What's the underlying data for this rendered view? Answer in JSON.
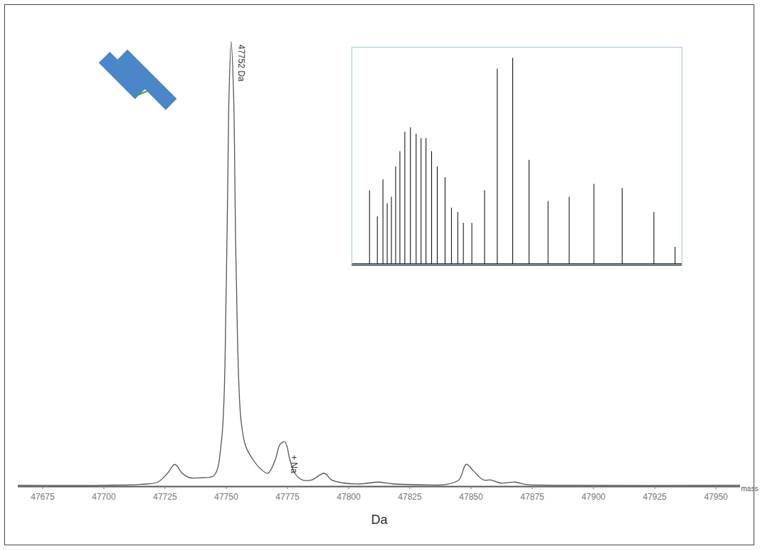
{
  "chart_data": [
    {
      "type": "line",
      "x_label": "Da",
      "x_axis_name": "mass",
      "color": "#555555",
      "x": [
        47665,
        47700,
        47715,
        47722,
        47726,
        47729,
        47732,
        47735,
        47740,
        47745,
        47748,
        47750,
        47751,
        47752,
        47753,
        47754,
        47756,
        47758,
        47761,
        47764,
        47767,
        47770,
        47772,
        47774,
        47776,
        47778,
        47781,
        47785,
        47790,
        47793,
        47798,
        47805,
        47812,
        47818,
        47830,
        47840,
        47845,
        47848,
        47851,
        47855,
        47858,
        47862,
        47868,
        47872,
        47890,
        47960
      ],
      "values": [
        0.3,
        0.3,
        0.5,
        1,
        3,
        5,
        3,
        2,
        2,
        2.5,
        10,
        45,
        85,
        100,
        88,
        50,
        15,
        9,
        6,
        4,
        3,
        6,
        9.5,
        10,
        6,
        3,
        1.5,
        1.5,
        3,
        1.5,
        0.8,
        0.6,
        1,
        0.6,
        0.4,
        0.5,
        1.5,
        5,
        3.5,
        1.5,
        1.5,
        0.8,
        1,
        0.5,
        0.3,
        0.3
      ],
      "xlim": [
        47665,
        47960
      ],
      "ylim": [
        0,
        100
      ],
      "xticks": [
        47675,
        47700,
        47725,
        47750,
        47775,
        47800,
        47825,
        47850,
        47875,
        47900,
        47925,
        47950
      ],
      "tick_labels": "x",
      "annotations": [
        {
          "text": "47752 Da",
          "x": 47752,
          "y": 100
        },
        {
          "text": "+ Na",
          "x": 47774,
          "y": 10
        }
      ]
    },
    {
      "type": "spectrum",
      "color": "#000000",
      "x": [
        1279,
        1358,
        1415,
        1458,
        1501,
        1544,
        1587,
        1637,
        1694,
        1752,
        1802,
        1852,
        1909,
        1966,
        2045,
        2110,
        2174,
        2231,
        2317,
        2446,
        2575,
        2732,
        2897,
        3090,
        3305,
        3556,
        3842,
        4164,
        4379
      ],
      "values": [
        34,
        22,
        39,
        28,
        31,
        45,
        52,
        61,
        63,
        60,
        58,
        58,
        52,
        45,
        40,
        26,
        24,
        19,
        19,
        34,
        90,
        95,
        48,
        29,
        31,
        37,
        35,
        24,
        8
      ],
      "xlim": [
        1100,
        4450
      ],
      "ylim": [
        0,
        100
      ],
      "tick_labels": false
    }
  ]
}
